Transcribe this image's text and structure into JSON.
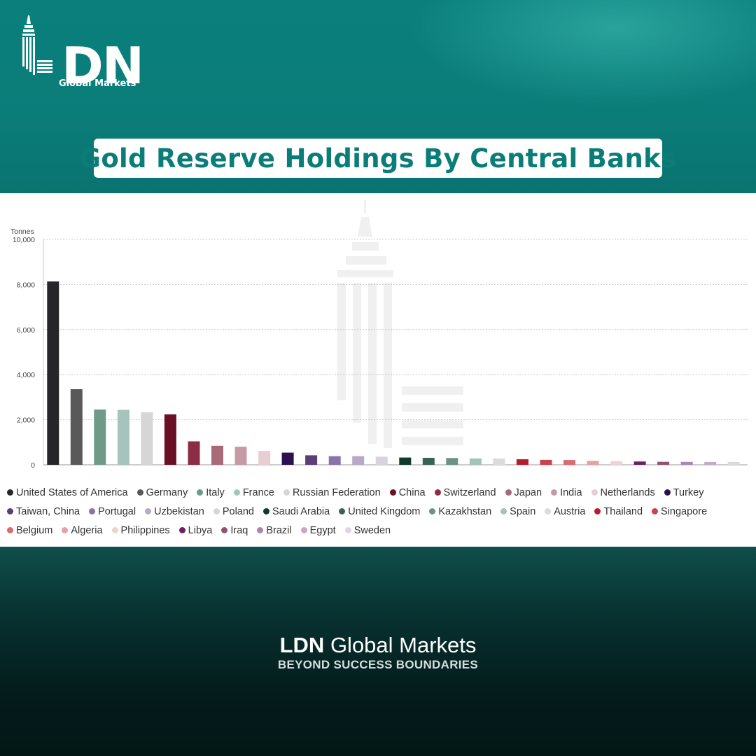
{
  "brand": {
    "logo_letters": "DN",
    "logo_sub": "Global Markets",
    "footer_name_bold": "LDN",
    "footer_name_rest": "Global Markets",
    "tagline": "BEYOND SUCCESS BOUNDARIES"
  },
  "chart_data": {
    "type": "bar",
    "title": "Gold Reserve Holdings By Central Banks",
    "ylabel": "Tonnes",
    "ylim": [
      0,
      10000
    ],
    "yticks": [
      "0",
      "2,000",
      "4,000",
      "6,000",
      "8,000",
      "10,000"
    ],
    "ytick_values": [
      0,
      2000,
      4000,
      6000,
      8000,
      10000
    ],
    "grid": true,
    "legend_position": "bottom",
    "categories": [
      "United States of America",
      "Germany",
      "Italy",
      "France",
      "Russian Federation",
      "China",
      "Switzerland",
      "Japan",
      "India",
      "Netherlands",
      "Turkey",
      "Taiwan, China",
      "Portugal",
      "Uzbekistan",
      "Poland",
      "Saudi Arabia",
      "United Kingdom",
      "Kazakhstan",
      "Spain",
      "Austria",
      "Thailand",
      "Singapore",
      "Belgium",
      "Algeria",
      "Philippines",
      "Libya",
      "Iraq",
      "Brazil",
      "Egypt",
      "Sweden"
    ],
    "values": [
      8133,
      3353,
      2452,
      2437,
      2333,
      2235,
      1040,
      846,
      800,
      612,
      540,
      423,
      383,
      383,
      359,
      323,
      310,
      300,
      282,
      280,
      245,
      220,
      215,
      174,
      160,
      147,
      132,
      130,
      127,
      126
    ],
    "colors": [
      "#26262a",
      "#595959",
      "#6f9a8a",
      "#a6c4bc",
      "#d6d6d6",
      "#6b0f24",
      "#8c2d45",
      "#a86978",
      "#c59aa4",
      "#e8cdd3",
      "#2b1052",
      "#5b3d78",
      "#8a73a8",
      "#b8a9c8",
      "#d8d3dd",
      "#0d3b2c",
      "#3a6155",
      "#6c9287",
      "#a5c2ba",
      "#d9dcdb",
      "#b51c2c",
      "#c9434e",
      "#d96b73",
      "#e3a2a6",
      "#eed2d4",
      "#6d1f5e",
      "#915372",
      "#a987a8",
      "#c5aac2",
      "#e0d6df"
    ]
  }
}
